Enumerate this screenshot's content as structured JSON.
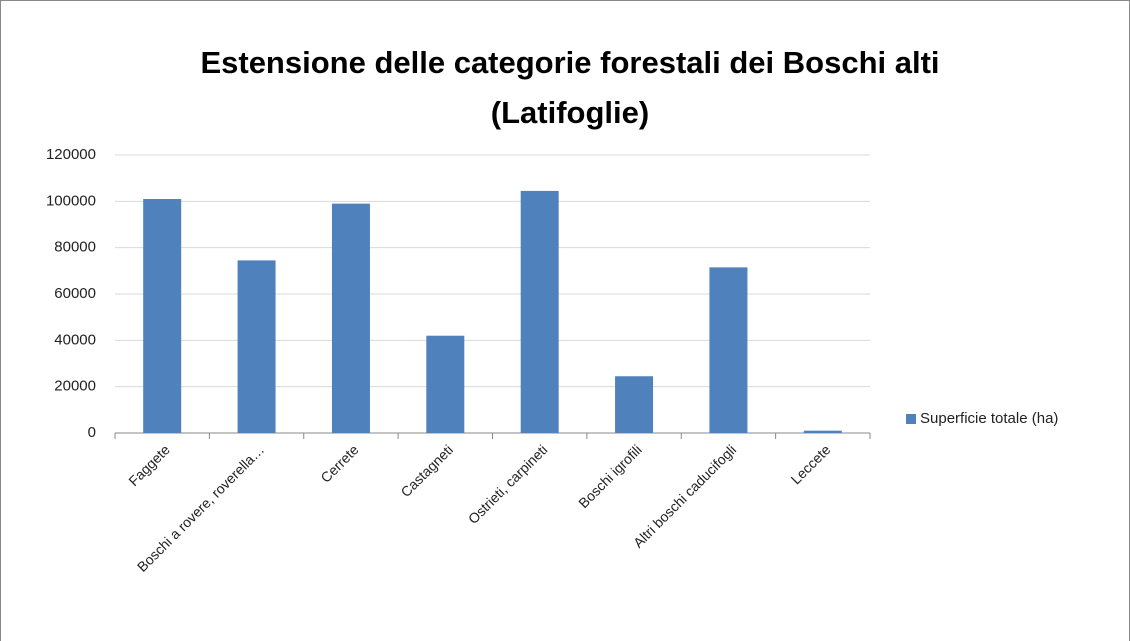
{
  "chart_data": {
    "type": "bar",
    "title": "Estensione delle categorie forestali dei Boschi alti (Latifoglie)",
    "categories": [
      "Faggete",
      "Boschi a rovere, roverella…",
      "Cerrete",
      "Castagneti",
      "Ostrieti, carpineti",
      "Boschi igrofili",
      "Altri boschi caducifogli",
      "Leccete"
    ],
    "series": [
      {
        "name": "Superficie totale (ha)",
        "color": "#4f81bd",
        "values": [
          101000,
          74500,
          99000,
          42000,
          104500,
          24500,
          71500,
          1000
        ]
      }
    ],
    "ylim": [
      0,
      120000
    ],
    "yticks": [
      0,
      20000,
      40000,
      60000,
      80000,
      100000,
      120000
    ],
    "grid": true,
    "legend": "right"
  }
}
